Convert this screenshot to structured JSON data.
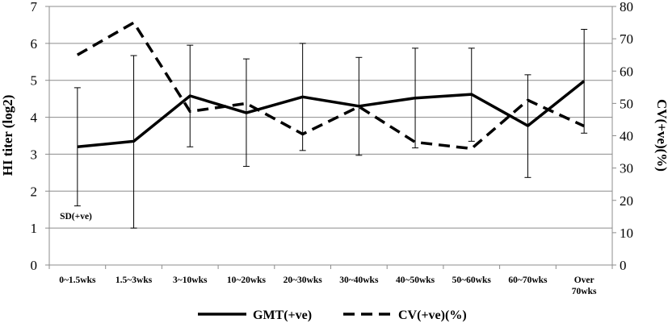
{
  "chart_data": {
    "type": "line",
    "categories": [
      "0~1.5wks",
      "1.5~3wks",
      "3~10wks",
      "10~20wks",
      "20~30wks",
      "30~40wks",
      "40~50wks",
      "50~60wks",
      "60~70wks",
      "Over 70wks"
    ],
    "y_left": {
      "label": "HI titer (log2)",
      "range": [
        0,
        7
      ],
      "ticks": [
        0,
        1,
        2,
        3,
        4,
        5,
        6,
        7
      ]
    },
    "y_right": {
      "label": "CV(+ve)(%)",
      "range": [
        0,
        80
      ],
      "ticks": [
        0,
        10,
        20,
        30,
        40,
        50,
        60,
        70,
        80
      ]
    },
    "grid": true,
    "legend_position": "bottom",
    "series": [
      {
        "name": "GMT(+ve)",
        "axis": "left",
        "style": "solid",
        "color": "#000000",
        "values": [
          3.2,
          3.35,
          4.58,
          4.12,
          4.55,
          4.3,
          4.52,
          4.62,
          3.77,
          4.98
        ],
        "error_low": [
          1.6,
          1.0,
          3.2,
          2.67,
          3.1,
          2.97,
          3.17,
          3.35,
          2.37,
          3.57
        ],
        "error_high": [
          4.8,
          5.67,
          5.95,
          5.58,
          6.0,
          5.62,
          5.87,
          5.87,
          5.15,
          6.38
        ]
      },
      {
        "name": "CV(+ve)(%)",
        "axis": "right",
        "style": "dashed",
        "color": "#000000",
        "values": [
          65,
          75,
          47.5,
          50,
          40.5,
          49,
          38,
          36,
          51,
          43
        ]
      }
    ],
    "annotations": [
      {
        "text": "SD(+ve)",
        "x_index": 0,
        "y": 1.3
      }
    ]
  }
}
